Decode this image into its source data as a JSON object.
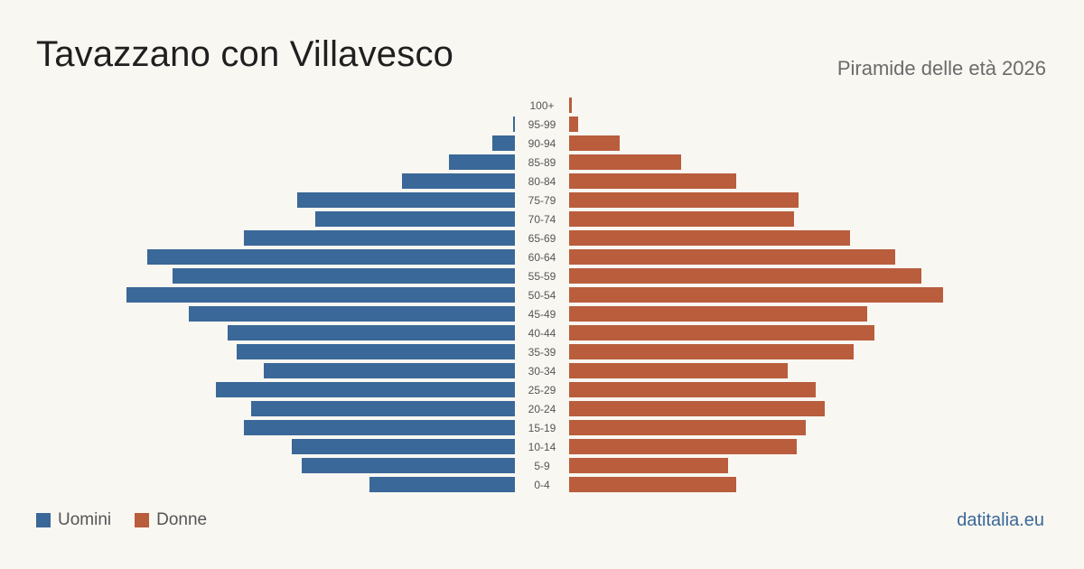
{
  "title": "Tavazzano con Villavesco",
  "subtitle": "Piramide delle età 2026",
  "brand": "datitalia.eu",
  "colors": {
    "men": "#3a6898",
    "women": "#b95d3d"
  },
  "legend": {
    "men": "Uomini",
    "women": "Donne"
  },
  "chart_data": {
    "type": "bar",
    "orientation": "horizontal-pyramid",
    "categories": [
      "100+",
      "95-99",
      "90-94",
      "85-89",
      "80-84",
      "75-79",
      "70-74",
      "65-69",
      "60-64",
      "55-59",
      "50-54",
      "45-49",
      "40-44",
      "35-39",
      "30-34",
      "25-29",
      "20-24",
      "15-19",
      "10-14",
      "5-9",
      "0-4"
    ],
    "series": [
      {
        "name": "Uomini",
        "values": [
          0,
          2,
          25,
          73,
          125,
          241,
          221,
          300,
          407,
          379,
          430,
          361,
          318,
          308,
          278,
          331,
          292,
          300,
          247,
          236,
          161
        ]
      },
      {
        "name": "Donne",
        "values": [
          3,
          10,
          56,
          124,
          185,
          254,
          249,
          311,
          361,
          390,
          414,
          330,
          338,
          315,
          242,
          273,
          283,
          262,
          252,
          176,
          185
        ]
      }
    ]
  }
}
